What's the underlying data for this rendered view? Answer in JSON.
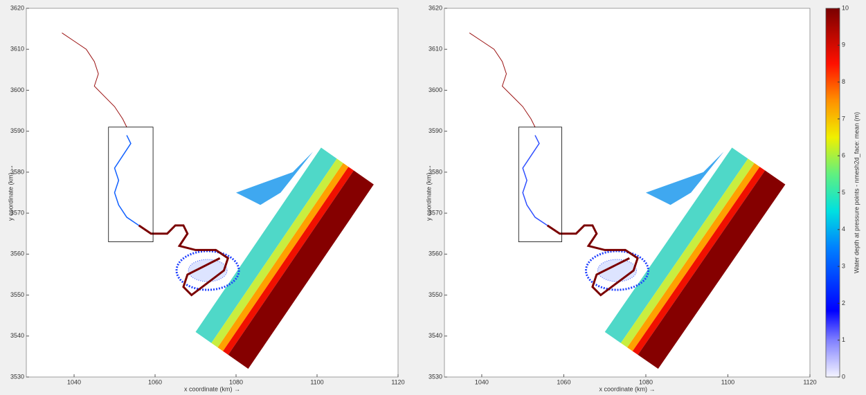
{
  "chart_data": [
    {
      "type": "map",
      "xlabel": "x coordinate (km) →",
      "ylabel": "y coordinate (km) →",
      "xlim": [
        1028.2,
        1120
      ],
      "ylim": [
        3530,
        3620
      ],
      "xticks": [
        1040,
        1060,
        1080,
        1100,
        1120
      ],
      "yticks": [
        3530,
        3540,
        3550,
        3560,
        3570,
        3580,
        3590,
        3600,
        3610,
        3620
      ]
    },
    {
      "type": "map",
      "xlabel": "x coordinate (km) →",
      "ylabel": "y coordinate (km) →",
      "xlim": [
        1030.9,
        1120
      ],
      "ylim": [
        3530,
        3620
      ],
      "xticks": [
        1040,
        1060,
        1080,
        1100,
        1120
      ],
      "yticks": [
        3530,
        3540,
        3550,
        3560,
        3570,
        3580,
        3590,
        3600,
        3610,
        3620
      ]
    }
  ],
  "colorbar": {
    "label": "Water depth at pressure points - nmesh2d_face: mean (m)",
    "lim": [
      0,
      10
    ],
    "ticks": [
      0,
      1,
      2,
      3,
      4,
      5,
      6,
      7,
      8,
      9,
      10
    ]
  }
}
